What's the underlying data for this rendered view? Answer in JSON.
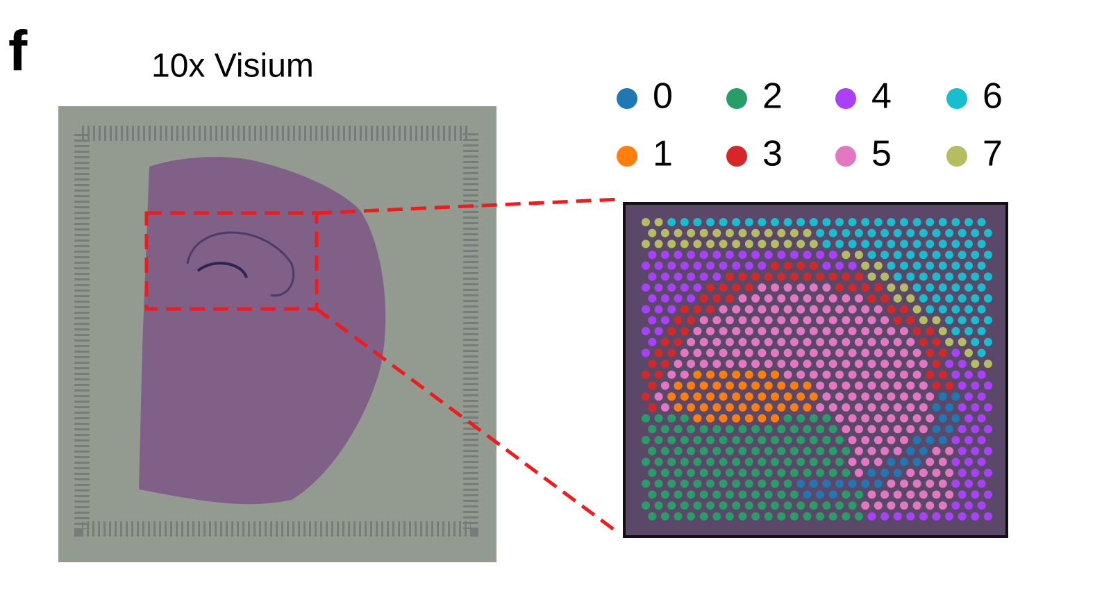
{
  "panel_label": "f",
  "title": "10x Visium",
  "legend": [
    {
      "label": "0",
      "color": "#1f77b4"
    },
    {
      "label": "1",
      "color": "#ff7f0e"
    },
    {
      "label": "2",
      "color": "#279e68"
    },
    {
      "label": "3",
      "color": "#d62728"
    },
    {
      "label": "4",
      "color": "#aa40fc"
    },
    {
      "label": "5",
      "color": "#e377c2"
    },
    {
      "label": "6",
      "color": "#17becf"
    },
    {
      "label": "7",
      "color": "#b5bd61"
    }
  ]
}
